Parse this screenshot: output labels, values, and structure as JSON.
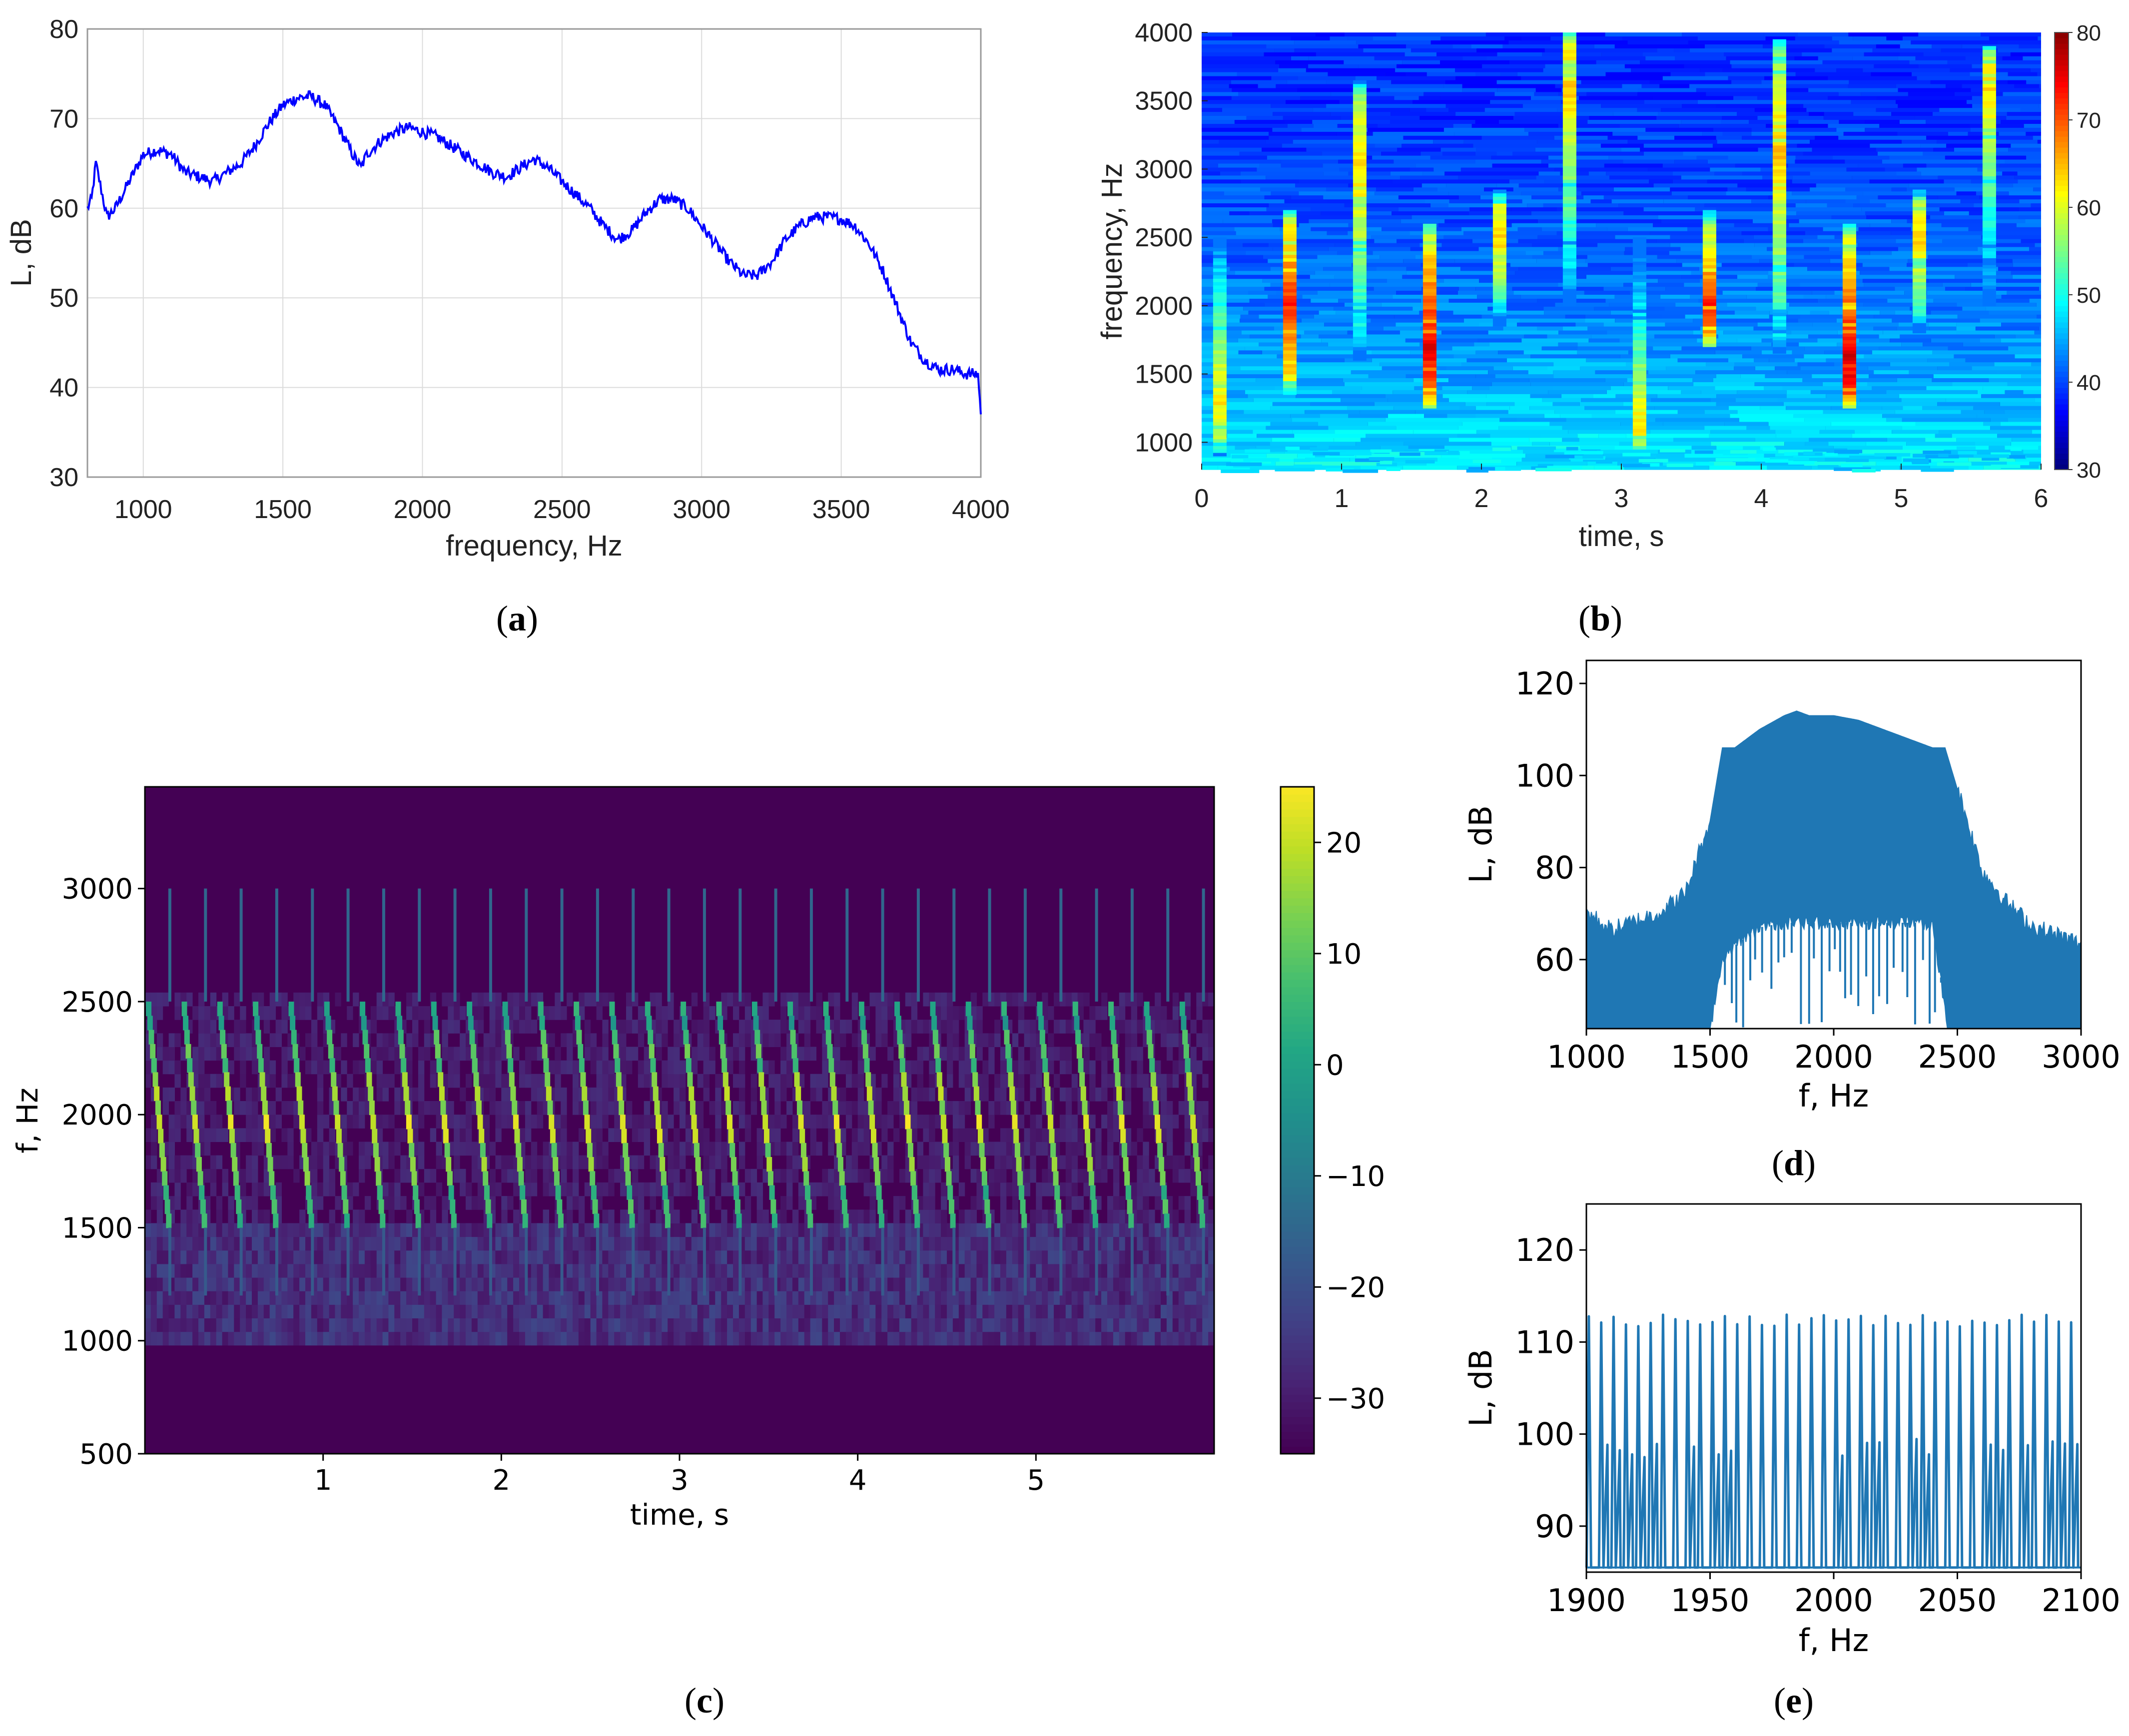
{
  "figure": {
    "panels": [
      {
        "letter": "a",
        "open": "(",
        "close": ")"
      },
      {
        "letter": "b",
        "open": "(",
        "close": ")"
      },
      {
        "letter": "c",
        "open": "(",
        "close": ")"
      },
      {
        "letter": "d",
        "open": "(",
        "close": ")"
      },
      {
        "letter": "e",
        "open": "(",
        "close": ")"
      }
    ]
  },
  "colors": {
    "a_line": "#0000ff",
    "spectrum_fill": "#1f77b4",
    "c_background": "#440154",
    "grid": "#dcdcdc"
  },
  "chart_data": [
    {
      "id": "a",
      "type": "line",
      "title": "",
      "xlabel": "frequency, Hz",
      "ylabel": "L, dB",
      "xlim": [
        800,
        4000
      ],
      "ylim": [
        30,
        80
      ],
      "xticks": [
        1000,
        1500,
        2000,
        2500,
        3000,
        3500,
        4000
      ],
      "yticks": [
        30,
        40,
        50,
        60,
        70,
        80
      ],
      "xtick_labels": [
        "1000",
        "1500",
        "2000",
        "2500",
        "3000",
        "3500",
        "4000"
      ],
      "ytick_labels": [
        "30",
        "40",
        "50",
        "60",
        "70",
        "80"
      ],
      "grid": true,
      "x": [
        800,
        815,
        830,
        870,
        900,
        950,
        1000,
        1050,
        1100,
        1150,
        1200,
        1250,
        1300,
        1350,
        1400,
        1450,
        1500,
        1550,
        1600,
        1650,
        1700,
        1750,
        1780,
        1800,
        1850,
        1900,
        1950,
        2000,
        2050,
        2100,
        2150,
        2200,
        2250,
        2300,
        2350,
        2400,
        2450,
        2500,
        2550,
        2600,
        2650,
        2700,
        2750,
        2800,
        2850,
        2900,
        2950,
        3000,
        3050,
        3100,
        3150,
        3200,
        3250,
        3300,
        3350,
        3400,
        3450,
        3500,
        3550,
        3600,
        3650,
        3700,
        3750,
        3800,
        3850,
        3900,
        3950,
        3990,
        4000
      ],
      "y": [
        60,
        61,
        65,
        59,
        60,
        63,
        66,
        66.5,
        66,
        64,
        63.5,
        63,
        64,
        65,
        67,
        69.5,
        71.5,
        72.3,
        72.5,
        71.5,
        69,
        66,
        64.5,
        66,
        67.5,
        68.5,
        69,
        68.5,
        68,
        67,
        66,
        65,
        64,
        63.5,
        64.5,
        65.5,
        64.5,
        63,
        61.5,
        60,
        58,
        56.5,
        57.5,
        59.5,
        61,
        61,
        60,
        58,
        56,
        54,
        52.5,
        52.5,
        54,
        56.5,
        58,
        59,
        59,
        58.8,
        58,
        56,
        53,
        49,
        45,
        43,
        42,
        42,
        41.5,
        41.5,
        37
      ]
    },
    {
      "id": "b",
      "type": "heatmap",
      "title": "",
      "xlabel": "time, s",
      "ylabel": "frequency, Hz",
      "xlim": [
        0,
        6
      ],
      "ylim": [
        800,
        4000
      ],
      "xticks": [
        0,
        1,
        2,
        3,
        4,
        5,
        6
      ],
      "yticks": [
        1000,
        1500,
        2000,
        2500,
        3000,
        3500,
        4000
      ],
      "xtick_labels": [
        "0",
        "1",
        "2",
        "3",
        "4",
        "5",
        "6"
      ],
      "ytick_labels": [
        "1000",
        "1500",
        "2000",
        "2500",
        "3000",
        "3500",
        "4000"
      ],
      "colorbar": {
        "min": 30,
        "max": 80,
        "ticks": [
          30,
          40,
          50,
          60,
          70,
          80
        ],
        "tick_labels": [
          "30",
          "40",
          "50",
          "60",
          "70",
          "80"
        ],
        "colormap": "jet"
      },
      "calls": [
        {
          "t": 0.13,
          "f_low": 900,
          "f_high": 2500,
          "peak_f": 1300,
          "peak_db": 62
        },
        {
          "t": 0.63,
          "f_low": 1350,
          "f_high": 2700,
          "peak_f": 2000,
          "peak_db": 72
        },
        {
          "t": 1.13,
          "f_low": 1600,
          "f_high": 3650,
          "peak_f": 3000,
          "peak_db": 63
        },
        {
          "t": 1.63,
          "f_low": 1250,
          "f_high": 2600,
          "peak_f": 1700,
          "peak_db": 75
        },
        {
          "t": 2.13,
          "f_low": 1850,
          "f_high": 2850,
          "peak_f": 2500,
          "peak_db": 64
        },
        {
          "t": 2.63,
          "f_low": 2000,
          "f_high": 4000,
          "peak_f": 3600,
          "peak_db": 64
        },
        {
          "t": 3.13,
          "f_low": 950,
          "f_high": 2500,
          "peak_f": 1000,
          "peak_db": 64
        },
        {
          "t": 3.63,
          "f_low": 1700,
          "f_high": 2700,
          "peak_f": 2000,
          "peak_db": 72
        },
        {
          "t": 4.13,
          "f_low": 1650,
          "f_high": 3950,
          "peak_f": 3100,
          "peak_db": 64
        },
        {
          "t": 4.63,
          "f_low": 1250,
          "f_high": 2600,
          "peak_f": 1600,
          "peak_db": 76
        },
        {
          "t": 5.13,
          "f_low": 1800,
          "f_high": 2850,
          "peak_f": 2500,
          "peak_db": 64
        },
        {
          "t": 5.63,
          "f_low": 2000,
          "f_high": 3900,
          "peak_f": 3600,
          "peak_db": 63
        }
      ]
    },
    {
      "id": "c",
      "type": "heatmap",
      "title": "",
      "xlabel": "time, s",
      "ylabel": "f, Hz",
      "xlim": [
        0,
        6
      ],
      "ylim": [
        500,
        3450
      ],
      "xticks": [
        1,
        2,
        3,
        4,
        5
      ],
      "yticks": [
        500,
        1000,
        1500,
        2000,
        2500,
        3000
      ],
      "xtick_labels": [
        "1",
        "2",
        "3",
        "4",
        "5"
      ],
      "ytick_labels": [
        "500",
        "1000",
        "1500",
        "2000",
        "2500",
        "3000"
      ],
      "colorbar": {
        "min": -35,
        "max": 25,
        "ticks": [
          -30,
          -20,
          -10,
          0,
          10,
          20
        ],
        "tick_labels": [
          "−30",
          "−20",
          "−10",
          "0",
          "10",
          "20"
        ],
        "colormap": "viridis"
      },
      "call_count": 30,
      "call_period_s": 0.2,
      "f_low": 1500,
      "f_high": 2500,
      "click_max_f": 3000,
      "noise_band": [
        1000,
        1500
      ]
    },
    {
      "id": "d",
      "type": "area",
      "title": "",
      "xlabel": "f, Hz",
      "ylabel": "L, dB",
      "xlim": [
        1000,
        3000
      ],
      "ylim": [
        45,
        125
      ],
      "xticks": [
        1000,
        1500,
        2000,
        2500,
        3000
      ],
      "yticks": [
        60,
        80,
        100,
        120
      ],
      "xtick_labels": [
        "1000",
        "1500",
        "2000",
        "2500",
        "3000"
      ],
      "ytick_labels": [
        "60",
        "80",
        "100",
        "120"
      ],
      "upper_x": [
        1000,
        1100,
        1200,
        1300,
        1400,
        1500,
        1550,
        1600,
        1700,
        1800,
        1850,
        1900,
        2000,
        2100,
        2200,
        2300,
        2400,
        2450,
        2500,
        2600,
        2700,
        2800,
        2900,
        3000
      ],
      "upper_y": [
        70,
        66,
        68,
        70,
        74,
        90,
        106,
        106,
        110,
        113,
        114,
        113,
        113,
        112,
        110,
        108,
        106,
        106,
        97,
        79,
        72,
        67,
        65,
        63
      ],
      "lower_x": [
        1000,
        1500,
        1550,
        1600,
        1700,
        1800,
        2000,
        2200,
        2400,
        2460,
        3000
      ],
      "lower_y": [
        45,
        45,
        60,
        63,
        67,
        68,
        68,
        68,
        68,
        45,
        45
      ]
    },
    {
      "id": "e",
      "type": "line",
      "title": "",
      "xlabel": "f, Hz",
      "ylabel": "L, dB",
      "xlim": [
        1900,
        2100
      ],
      "ylim": [
        85,
        125
      ],
      "xticks": [
        1900,
        1950,
        2000,
        2050,
        2100
      ],
      "yticks": [
        90,
        100,
        110,
        120
      ],
      "xtick_labels": [
        "1900",
        "1950",
        "2000",
        "2050",
        "2100"
      ],
      "ytick_labels": [
        "90",
        "100",
        "110",
        "120"
      ],
      "harmonic_spacing_hz": 5,
      "first_harmonic_hz": 1901,
      "peak_db": 113,
      "floor_db": 85.5
    }
  ]
}
